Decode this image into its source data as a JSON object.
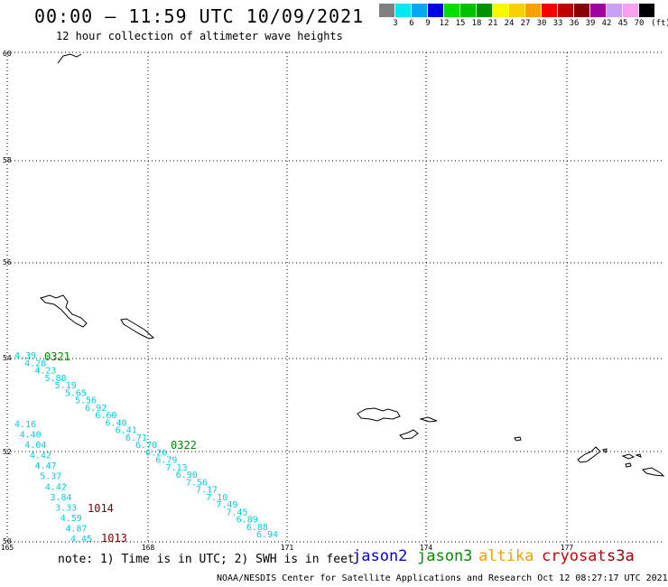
{
  "header": {
    "title": "00:00 – 11:59 UTC 10/09/2021",
    "subtitle": "12 hour collection of altimeter wave heights"
  },
  "legend": {
    "colors": [
      "#808080",
      "#00e8f0",
      "#00a8f8",
      "#0000e8",
      "#00e000",
      "#00c000",
      "#009000",
      "#f8f800",
      "#f8d000",
      "#f8a000",
      "#f80000",
      "#c00000",
      "#880000",
      "#a000a0",
      "#c8a0f8",
      "#f8a0f0",
      "#000000"
    ],
    "labels": [
      "3",
      "6",
      "9",
      "12",
      "15",
      "18",
      "21",
      "24",
      "27",
      "30",
      "33",
      "36",
      "39",
      "42",
      "45",
      "70"
    ],
    "unit": "(ft)"
  },
  "map": {
    "lat_labels": [
      "60",
      "58",
      "56",
      "54",
      "52",
      "50"
    ],
    "lon_labels": [
      "165",
      "168",
      "171",
      "174",
      "177"
    ],
    "ranges": {
      "lon": [
        165,
        177
      ],
      "lat": [
        50,
        60
      ]
    },
    "track_a": {
      "color": "#00d0e0",
      "values": [
        "4.39",
        "4.28",
        "4.23",
        "5.88",
        "5.19",
        "5.65",
        "5.56",
        "6.92",
        "6.60",
        "6.40",
        "6.41",
        "6.71",
        "6.70",
        "6.26",
        "6.79",
        "7.13",
        "6.90",
        "7.56",
        "7.17",
        "7.10",
        "7.49",
        "7.45",
        "6.89",
        "6.88",
        "6.94"
      ]
    },
    "track_b": {
      "color": "#00d0e0",
      "values": [
        "4.16",
        "4.40",
        "4.04",
        "4.42",
        "4.47",
        "5.37",
        "4.42",
        "3.84",
        "3.33",
        "4.59",
        "4.87",
        "4.45"
      ]
    },
    "time_labels": [
      {
        "text": "0321",
        "color": "#008800"
      },
      {
        "text": "0322",
        "color": "#008800"
      },
      {
        "text": "1014",
        "color": "#800000"
      },
      {
        "text": "1013",
        "color": "#800000"
      }
    ]
  },
  "note": "note:  1) Time is in UTC;  2) SWH is in feet",
  "satellites": [
    {
      "name": "jason2",
      "color": "#0000e0"
    },
    {
      "name": "jason3",
      "color": "#009000"
    },
    {
      "name": "altika",
      "color": "#f0a000"
    },
    {
      "name": "cryosat",
      "color": "#d00000"
    },
    {
      "name": "s3a",
      "color": "#a00000"
    }
  ],
  "footer": "NOAA/NESDIS Center for Satellite Applications and Research    Oct 12 08:27:17 UTC 2021"
}
